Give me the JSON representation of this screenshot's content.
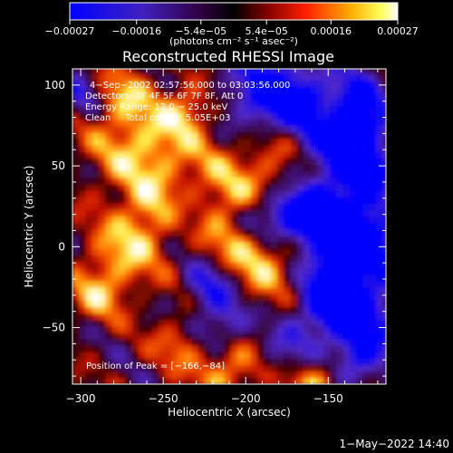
{
  "chart_data": {
    "type": "heatmap",
    "title": "Reconstructed RHESSI Image",
    "xlabel": "Heliocentric X (arcsec)",
    "ylabel": "Heliocentric Y (arcsec)",
    "xlim": [
      -305,
      -115
    ],
    "ylim": [
      -85,
      110
    ],
    "x_ticks": [
      -300,
      -250,
      -200,
      -150
    ],
    "x_tick_labels": [
      "−300",
      "−250",
      "−200",
      "−150"
    ],
    "y_ticks": [
      -50,
      0,
      50,
      100
    ],
    "y_tick_labels": [
      "−50",
      "0",
      "50",
      "100"
    ],
    "colorbar": {
      "range": [
        -0.00027,
        0.00027
      ],
      "ticks": [
        -0.00027,
        -0.00016,
        -5.4e-05,
        5.4e-05,
        0.00016,
        0.00027
      ],
      "tick_labels": [
        "−0.00027",
        "−0.00016",
        "−5.4e−05",
        "5.4e−05",
        "0.00016",
        "0.00027"
      ],
      "units_label": "(photons cm⁻² s⁻¹ asec⁻²)"
    },
    "annotations": [
      "4−Sep−2002 02:57:56.000 to 03:03:56.000",
      "Detectors: 3F 4F 5F 6F 7F 8F, Att 0",
      "Energy Range: 12.0 − 25.0 keV",
      "Clean     Total counts: 5.05E+03"
    ],
    "peak_label": "Position of Peak = [−166,−84]",
    "peak_position": [
      -166,
      -84
    ],
    "grid": false,
    "colors": {
      "background": "#000000",
      "negative_low": "#0000ff",
      "near_zero": "#000000",
      "positive_mid": "#ff2000",
      "positive_high": "#ffff60",
      "positive_max": "#ffffff"
    }
  },
  "footer": {
    "timestamp": "1−May−2022 14:40"
  }
}
